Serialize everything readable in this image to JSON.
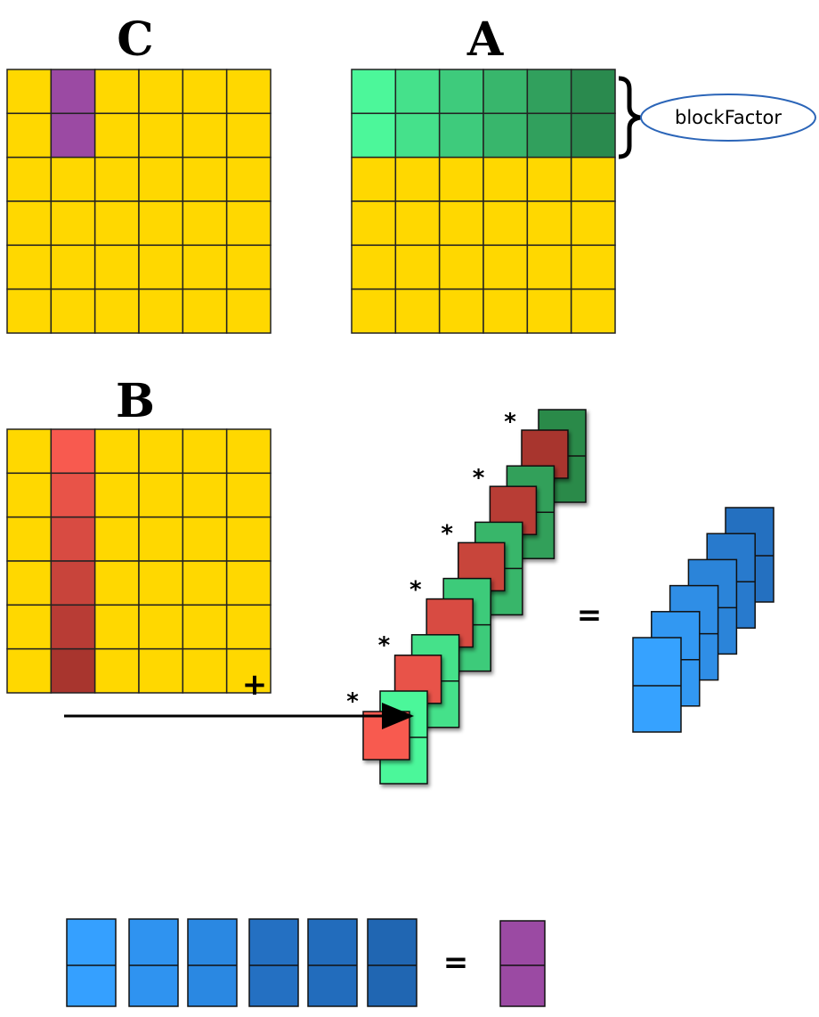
{
  "matrices": {
    "c": "C",
    "a": "A",
    "b": "B"
  },
  "annotation": "blockFactor",
  "multiply_signs": [
    "*",
    "*",
    "*",
    "*",
    "*",
    "*"
  ],
  "equals": [
    "=",
    "="
  ],
  "plus": "+"
}
